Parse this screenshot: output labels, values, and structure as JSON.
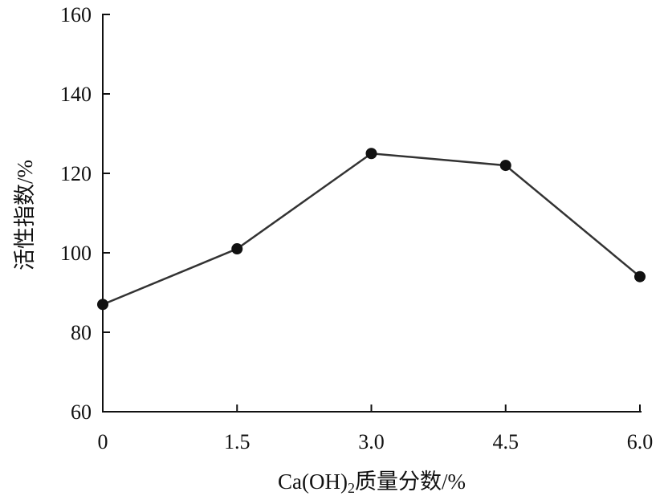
{
  "chart_data": {
    "type": "line",
    "xlabel": "Ca(OH)₂质量分数/%",
    "xlabel_parts": {
      "prefix": "Ca(OH)",
      "subscript": "2",
      "suffix": "质量分数/%"
    },
    "ylabel": "活性指数/%",
    "x": [
      0,
      1.5,
      3.0,
      4.5,
      6.0
    ],
    "series": [
      {
        "values": [
          87,
          101,
          125,
          122,
          94
        ]
      }
    ],
    "xlim": [
      0,
      6.0
    ],
    "ylim": [
      60,
      160
    ],
    "x_ticks": [
      "0",
      "1.5",
      "3.0",
      "4.5",
      "6.0"
    ],
    "y_ticks": [
      "60",
      "80",
      "100",
      "120",
      "140",
      "160"
    ],
    "grid": false,
    "legend": "none",
    "colors": {
      "line": "#333333",
      "marker": "#111111",
      "axis": "#111111"
    }
  }
}
